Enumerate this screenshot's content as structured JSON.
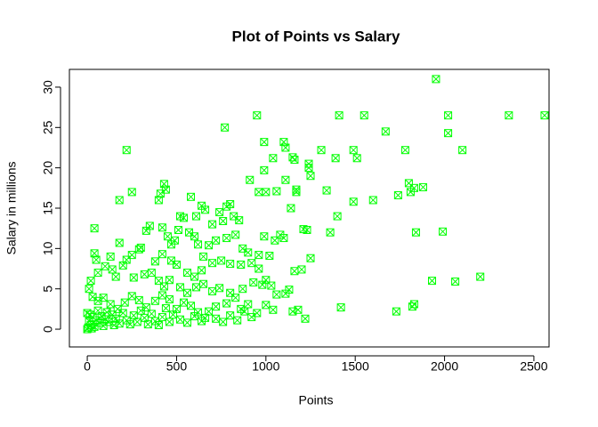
{
  "chart_data": {
    "type": "scatter",
    "title": "Plot of Points vs Salary",
    "x_label": "Points",
    "y_label": "Salary in millions",
    "color": "#00ff00",
    "xlim": [
      -100,
      2585
    ],
    "ylim": [
      -2.2,
      32.2
    ],
    "xticks": [
      0,
      500,
      1000,
      1500,
      2000,
      2500
    ],
    "yticks": [
      0,
      5,
      10,
      15,
      20,
      25,
      30
    ],
    "x": [
      1952,
      950,
      1410,
      1550,
      2020,
      2360,
      2560,
      770,
      1670,
      2020,
      990,
      1100,
      1110,
      220,
      1310,
      1490,
      1780,
      2100,
      1040,
      1150,
      1160,
      1240,
      1240,
      1390,
      1510,
      1800,
      1880,
      1830,
      1810,
      1740,
      1600,
      1490,
      1340,
      1170,
      1060,
      960,
      1000,
      910,
      990,
      1110,
      1250,
      1170,
      1840,
      1990,
      1930,
      2060,
      2200,
      1830,
      1820,
      1730,
      1420,
      1400,
      1360,
      1140,
      1210,
      1230,
      1250,
      1200,
      1160,
      1180,
      1150,
      1220,
      180,
      250,
      400,
      410,
      430,
      440,
      580,
      610,
      640,
      660,
      700,
      740,
      780,
      800,
      820,
      850,
      760,
      330,
      350,
      420,
      450,
      470,
      490,
      510,
      520,
      540,
      570,
      600,
      620,
      650,
      680,
      720,
      780,
      830,
      870,
      900,
      960,
      990,
      1050,
      1080,
      1100,
      1020,
      960,
      920,
      860,
      800,
      750,
      700,
      640,
      600,
      560,
      500,
      470,
      420,
      380,
      300,
      290,
      250,
      220,
      180,
      130,
      40,
      40,
      50,
      20,
      10,
      60,
      100,
      140,
      160,
      200,
      260,
      320,
      360,
      400,
      430,
      460,
      520,
      560,
      610,
      650,
      700,
      740,
      800,
      830,
      870,
      930,
      980,
      1000,
      1030,
      1060,
      1110,
      1130,
      900,
      950,
      1000,
      1040,
      860,
      780,
      720,
      660,
      620,
      580,
      540,
      500,
      460,
      420,
      380,
      330,
      290,
      250,
      210,
      170,
      130,
      90,
      60,
      30,
      0,
      10,
      20,
      30,
      40,
      50,
      60,
      70,
      80,
      90,
      100,
      110,
      120,
      140,
      150,
      160,
      180,
      200,
      220,
      240,
      260,
      280,
      300,
      320,
      340,
      360,
      380,
      400,
      420,
      440,
      460,
      480,
      520,
      560,
      600,
      640,
      680,
      720,
      760,
      800,
      840,
      880,
      920,
      0,
      5,
      15,
      25
    ],
    "values": [
      31,
      26.5,
      26.5,
      26.5,
      26.5,
      26.5,
      26.5,
      25,
      24.5,
      24.3,
      23.2,
      23.2,
      22.5,
      22.2,
      22.2,
      22.2,
      22.2,
      22.2,
      21.2,
      21.3,
      21,
      20.5,
      20,
      21.2,
      21.2,
      18.1,
      17.6,
      17.5,
      17,
      16.6,
      16,
      15.8,
      17.2,
      17,
      17.1,
      17,
      17,
      18.5,
      19.7,
      18.5,
      19,
      17.3,
      12,
      12.1,
      6,
      5.9,
      6.5,
      3.1,
      2.8,
      2.2,
      2.7,
      14,
      12,
      15,
      12.4,
      12.3,
      8.8,
      7.4,
      7.2,
      2.4,
      2.2,
      1.3,
      16,
      17,
      16,
      16.8,
      18,
      17.3,
      16.4,
      14,
      15.3,
      14.8,
      13,
      14.5,
      15.2,
      15.5,
      14,
      13.5,
      13.4,
      12.2,
      12.8,
      12.6,
      11.5,
      10.5,
      11,
      12.3,
      14,
      13.8,
      12,
      11.5,
      10.5,
      9,
      10.4,
      11,
      11.3,
      11.7,
      10,
      9.5,
      9.2,
      11.5,
      11,
      11.7,
      11.3,
      9.1,
      7.5,
      8.2,
      8,
      8.1,
      8.5,
      8.2,
      7.3,
      6.5,
      7,
      8,
      8.5,
      9.3,
      8.4,
      10.1,
      9.9,
      9.2,
      8.6,
      10.7,
      9,
      12.5,
      9.4,
      8.6,
      6,
      5,
      7,
      7.8,
      7.4,
      6.5,
      7.9,
      6.4,
      6.8,
      7,
      6,
      5.3,
      6.1,
      5.2,
      4.5,
      5.2,
      5.6,
      4.7,
      5.1,
      4.5,
      3.9,
      5,
      5.8,
      5.5,
      6.1,
      5.4,
      4.3,
      4.4,
      4.9,
      3.1,
      2,
      3,
      2.4,
      2.5,
      3.2,
      2.8,
      1.4,
      2.1,
      2.9,
      3.3,
      2.5,
      3.7,
      4.2,
      3.5,
      2.7,
      3.6,
      4.1,
      3.3,
      2.5,
      3.1,
      3.9,
      3.5,
      4,
      2,
      1,
      0.5,
      1.5,
      0.3,
      1.1,
      2.3,
      0.8,
      1.6,
      0.4,
      1.2,
      2.1,
      0.9,
      1.8,
      0.5,
      1.3,
      0.7,
      2,
      1.1,
      0.6,
      1.7,
      0.9,
      2.3,
      1.4,
      0.6,
      1.9,
      1,
      0.5,
      1.5,
      2.6,
      0.9,
      1.8,
      1.2,
      0.8,
      1.6,
      1,
      2.2,
      1.3,
      0.9,
      1.7,
      1.1,
      2.2,
      1.5,
      0,
      0.2,
      1.8,
      0.1
    ]
  }
}
